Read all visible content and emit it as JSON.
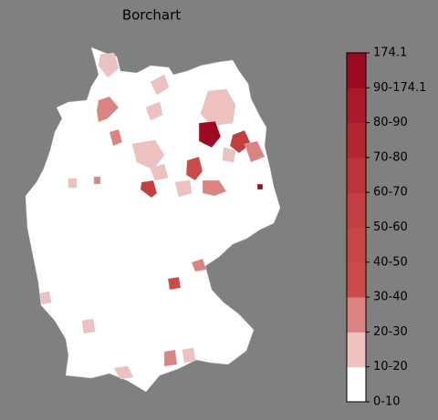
{
  "title": "Borchart",
  "colorbar": {
    "labels": [
      "0-10",
      "10-20",
      "20-30",
      "30-40",
      "40-50",
      "50-60",
      "60-70",
      "70-80",
      "80-90",
      "90-174.1",
      "174.1"
    ],
    "colors": [
      "#ffffff",
      "#eec1c1",
      "#db8282",
      "#cb4b4b",
      "#c74545",
      "#c23e40",
      "#bc3338",
      "#b42731",
      "#aa1a2a",
      "#9c0a22"
    ]
  }
}
